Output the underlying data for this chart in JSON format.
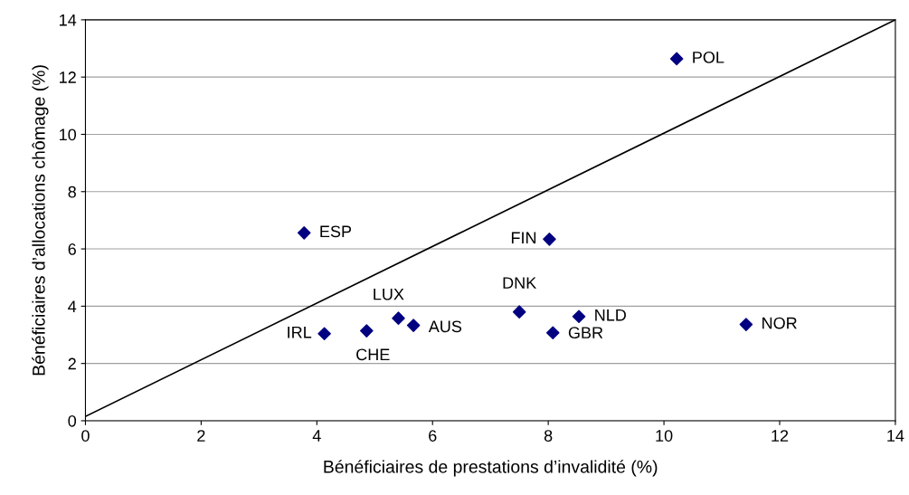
{
  "chart_data": {
    "type": "scatter",
    "xlabel": "Bénéficiaires de prestations d’invalidité (%)",
    "ylabel": "Bénéficiaires d’allocations chômage (%)",
    "x": [
      10.22,
      3.78,
      8.02,
      7.5,
      8.53,
      11.42,
      5.41,
      5.67,
      4.86,
      4.13,
      8.08
    ],
    "series": [
      {
        "color": "#000080",
        "marker": "diamond",
        "values": [
          12.64,
          6.56,
          6.34,
          3.8,
          3.64,
          3.36,
          3.58,
          3.33,
          3.14,
          3.04,
          3.07
        ]
      },
      {
        "type": "line",
        "color": "#000000",
        "x": [
          0,
          14
        ],
        "values": [
          0.15,
          14
        ]
      }
    ],
    "annotations": [
      {
        "text": "POL",
        "x": 10.22,
        "y": 12.64
      },
      {
        "text": "ESP",
        "x": 3.78,
        "y": 6.56
      },
      {
        "text": "FIN",
        "x": 8.02,
        "y": 6.34
      },
      {
        "text": "DNK",
        "x": 7.5,
        "y": 3.8
      },
      {
        "text": "NLD",
        "x": 8.53,
        "y": 3.64
      },
      {
        "text": "NOR",
        "x": 11.42,
        "y": 3.36
      },
      {
        "text": "LUX",
        "x": 5.41,
        "y": 3.58
      },
      {
        "text": "AUS",
        "x": 5.67,
        "y": 3.33
      },
      {
        "text": "CHE",
        "x": 4.86,
        "y": 3.14
      },
      {
        "text": "IRL",
        "x": 4.13,
        "y": 3.04
      },
      {
        "text": "GBR",
        "x": 8.08,
        "y": 3.07
      }
    ],
    "xlim": [
      0,
      14
    ],
    "ylim": [
      0,
      14
    ],
    "xticks": [
      0,
      2,
      4,
      6,
      8,
      10,
      12,
      14
    ],
    "yticks": [
      0,
      2,
      4,
      6,
      8,
      10,
      12,
      14
    ],
    "grid": "y",
    "line_style": "solid"
  }
}
